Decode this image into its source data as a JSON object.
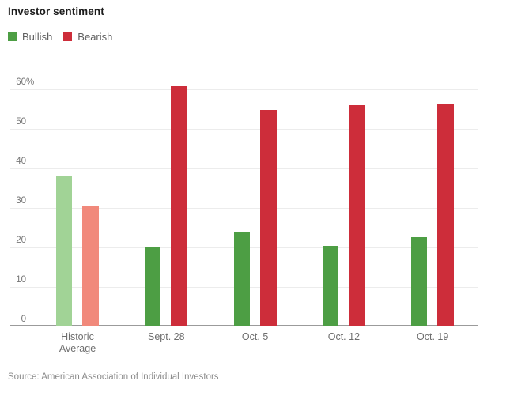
{
  "header": {
    "title": "Investor sentiment"
  },
  "legend": {
    "bullish_label": "Bullish",
    "bearish_label": "Bearish"
  },
  "source_line": "Source: American Association of Individual Investors",
  "colors": {
    "bullish": "#4d9e44",
    "bearish": "#cd2d3a",
    "bullish_muted": "#a1d396",
    "bearish_muted": "#f1897b",
    "gridline": "#ececec",
    "axis": "#9b9b9b"
  },
  "chart_data": {
    "type": "bar",
    "title": "Investor sentiment",
    "categories": [
      "Historic Average",
      "Sept. 28",
      "Oct. 5",
      "Oct. 12",
      "Oct. 19"
    ],
    "category_label_lines": [
      [
        "Historic",
        "Average"
      ],
      [
        "Sept. 28"
      ],
      [
        "Oct. 5"
      ],
      [
        "Oct. 12"
      ],
      [
        "Oct. 19"
      ]
    ],
    "muted_categories": [
      0
    ],
    "series": [
      {
        "name": "Bullish",
        "color": "#4d9e44",
        "muted_color": "#a1d396",
        "values": [
          38.0,
          20.0,
          23.9,
          20.4,
          22.6
        ]
      },
      {
        "name": "Bearish",
        "color": "#cd2d3a",
        "muted_color": "#f1897b",
        "values": [
          30.5,
          60.8,
          54.8,
          55.9,
          56.2
        ]
      }
    ],
    "xlabel": "",
    "ylabel": "",
    "ylim": [
      0,
      60
    ],
    "yticks": [
      0,
      10,
      20,
      30,
      40,
      50,
      60
    ],
    "ytick_top_suffix": "%",
    "grid": "horizontal",
    "legend_position": "top-left"
  }
}
